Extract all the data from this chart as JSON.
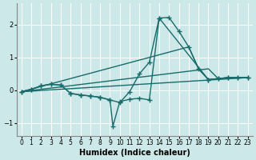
{
  "bg_color": "#cce8e8",
  "grid_color": "#ffffff",
  "line_color": "#1a6b6b",
  "xlabel": "Humidex (Indice chaleur)",
  "xlim": [
    -0.5,
    23.5
  ],
  "ylim": [
    -1.4,
    2.65
  ],
  "yticks": [
    -1,
    0,
    1,
    2
  ],
  "line1_x": [
    0,
    1,
    2,
    3,
    4,
    5,
    6,
    7,
    8,
    9,
    10,
    11,
    12,
    13,
    14,
    15,
    16,
    17,
    18,
    19,
    20,
    21,
    22,
    23
  ],
  "line1_y": [
    -0.05,
    0.02,
    0.13,
    0.18,
    0.15,
    -0.1,
    -0.15,
    -0.18,
    -0.22,
    -0.3,
    -0.38,
    -0.05,
    0.5,
    0.85,
    2.2,
    2.22,
    1.8,
    1.32,
    0.65,
    0.32,
    0.35,
    0.38,
    0.38,
    0.38
  ],
  "line2_x": [
    0,
    1,
    2,
    3,
    4,
    5,
    6,
    7,
    8,
    9,
    9.3,
    10,
    11,
    12,
    13,
    14,
    19,
    20,
    21,
    22,
    23
  ],
  "line2_y": [
    -0.05,
    0.02,
    0.13,
    0.18,
    0.15,
    -0.1,
    -0.15,
    -0.18,
    -0.22,
    -0.3,
    -1.1,
    -0.35,
    -0.28,
    -0.25,
    -0.3,
    2.2,
    0.32,
    0.35,
    0.38,
    0.38,
    0.38
  ],
  "line3_x": [
    0,
    23
  ],
  "line3_y": [
    -0.05,
    0.38
  ],
  "line4_x": [
    0,
    19,
    20,
    21,
    22,
    23
  ],
  "line4_y": [
    -0.05,
    0.65,
    0.35,
    0.38,
    0.38,
    0.38
  ],
  "line5_x": [
    0,
    17,
    18,
    19,
    20,
    21,
    22,
    23
  ],
  "line5_y": [
    -0.05,
    1.32,
    0.65,
    0.32,
    0.35,
    0.38,
    0.38,
    0.38
  ]
}
